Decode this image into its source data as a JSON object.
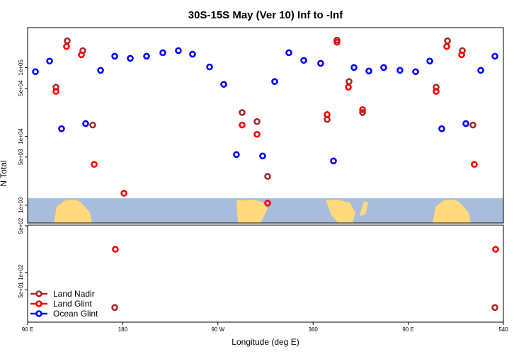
{
  "chart_data": [
    {
      "type": "scatter",
      "title": "30S-15S May (Ver 10)   Inf to -Inf",
      "ylabel": "N Total",
      "log_y": true,
      "xlim": [
        90,
        540
      ],
      "ylim": [
        550,
        380000
      ],
      "yticks": [
        {
          "value": 100000,
          "label": "1e+05"
        },
        {
          "value": 50000,
          "label": "5e+04"
        },
        {
          "value": 10000,
          "label": "1e+04"
        },
        {
          "value": 5000,
          "label": "5e+03"
        },
        {
          "value": 1000,
          "label": "1e+03"
        },
        {
          "value": 500,
          "label": "5e+02"
        }
      ],
      "series": [
        {
          "color": "#a52a2a",
          "x": [
            116.8,
            127.5,
            142.2,
            151.6,
            292.9,
            307.0,
            317.0,
            373.3,
            382.6,
            394.0,
            406.8,
            476.4,
            487.1,
            501.2,
            511.2
          ],
          "values": [
            51800,
            244000,
            176000,
            14600,
            22200,
            16400,
            2620,
            17600,
            250000,
            62500,
            22200,
            51800,
            244000,
            176000,
            14600
          ]
        },
        {
          "color": "#ff0000",
          "x": [
            116.8,
            126.8,
            140.9,
            153.0,
            181.1,
            292.9,
            307.0,
            317.0,
            373.3,
            382.6,
            393.4,
            406.8,
            476.4,
            486.4,
            500.5,
            512.5
          ],
          "values": [
            45000,
            202000,
            153000,
            3910,
            1490,
            14600,
            10700,
            1070,
            20700,
            233000,
            51800,
            24400,
            45000,
            202000,
            153000,
            3910
          ]
        },
        {
          "color": "#0000ff",
          "x": [
            97.4,
            110.8,
            122.1,
            144.9,
            159.0,
            172.4,
            187.1,
            202.5,
            217.9,
            232.6,
            246.0,
            262.1,
            275.5,
            287.5,
            312.3,
            323.7,
            337.1,
            351.2,
            367.2,
            379.3,
            398.7,
            412.8,
            426.8,
            442.2,
            457.0,
            470.4,
            481.7,
            504.5,
            518.6,
            532.0
          ],
          "values": [
            86900,
            124000,
            12900,
            15300,
            91000,
            146000,
            136000,
            146000,
            164000,
            176000,
            156000,
            102000,
            56900,
            5430,
            5180,
            62500,
            164000,
            127000,
            115000,
            4390,
            100000,
            88900,
            100000,
            91000,
            86900,
            124000,
            12900,
            15300,
            91000,
            146000
          ]
        }
      ]
    },
    {
      "type": "scatter",
      "xlabel": "Longitude (deg E)",
      "log_y": true,
      "legend": "lower left",
      "xlim": [
        90,
        540
      ],
      "ylim": [
        14,
        650
      ],
      "xticks": [
        {
          "value": 90,
          "label": "90 E"
        },
        180,
        {
          "value": 270,
          "label": "90 W"
        },
        360,
        {
          "value": 450,
          "label": "90 E"
        },
        540
      ],
      "yticks": [
        {
          "value": 100,
          "label": "1e+02"
        },
        {
          "value": 50,
          "label": "5e+01"
        }
      ],
      "series": [
        {
          "name": "Land Nadir",
          "color": "#a52a2a",
          "x": [
            172.4,
            532.0
          ],
          "values": [
            25,
            25
          ]
        },
        {
          "name": "Land Glint",
          "color": "#ff0000",
          "x": [
            173.0,
            532.6
          ],
          "values": [
            250,
            250
          ]
        },
        {
          "name": "Ocean Glint",
          "color": "#0000ff",
          "x": [],
          "values": []
        }
      ]
    }
  ]
}
